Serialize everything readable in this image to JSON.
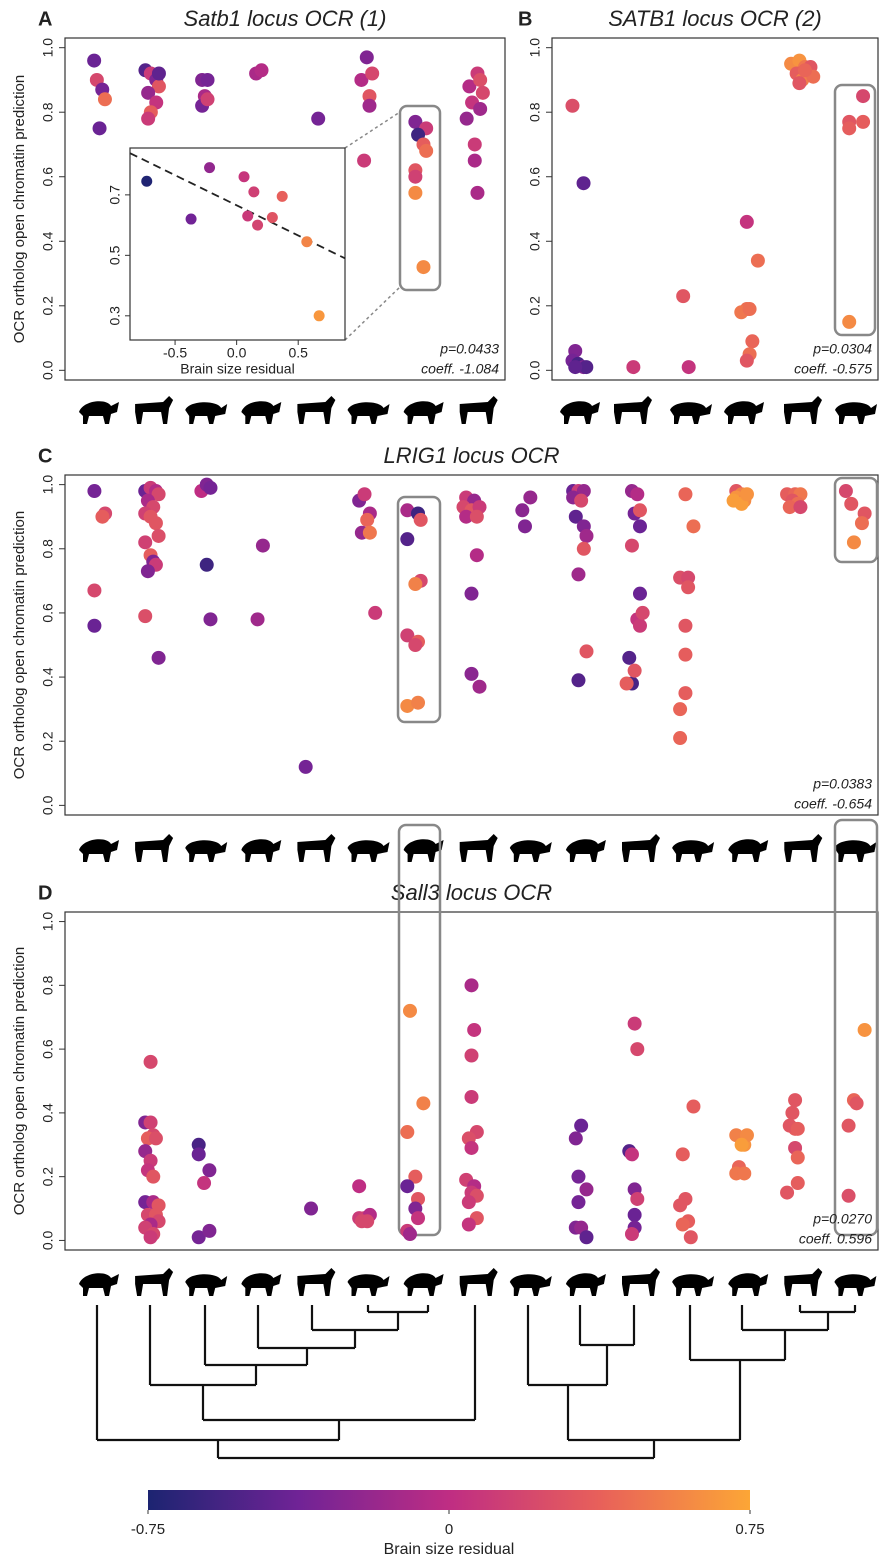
{
  "chart_data": [
    {
      "type": "scatter",
      "label": "A",
      "title": "Satb1 locus OCR (1)",
      "ylabel": "OCR ortholog open chromatin prediction",
      "xlim": [
        -0.59,
        7.56
      ],
      "ylim": [
        -0.03,
        1.03
      ],
      "yticks": [
        {
          "value": 0,
          "label": "0.0"
        },
        0.2,
        0.4,
        0.6,
        0.8,
        {
          "value": 1,
          "label": "1.0"
        }
      ],
      "x": [
        -0.05,
        0,
        0.1,
        0.15,
        0.05,
        0.9,
        1,
        1.1,
        1.15,
        0.95,
        1.1,
        1,
        0.95,
        1.15,
        1.95,
        2.05,
        2,
        1.95,
        2.05,
        2.95,
        3.05,
        4.1,
        4.9,
        5,
        5.1,
        5.05,
        5.05,
        4.95,
        5.9,
        6.1,
        5.95,
        6.05,
        6.1,
        5.9,
        5.9,
        5.9,
        6.05,
        6.9,
        7.05,
        7.1,
        7.15,
        6.95,
        7.1,
        6.85,
        7,
        7,
        7.05
      ],
      "values": [
        0.96,
        0.9,
        0.87,
        0.84,
        0.75,
        0.93,
        0.92,
        0.9,
        0.88,
        0.86,
        0.83,
        0.8,
        0.78,
        0.92,
        0.9,
        0.9,
        0.85,
        0.82,
        0.84,
        0.92,
        0.93,
        0.78,
        0.9,
        0.97,
        0.92,
        0.85,
        0.82,
        0.65,
        0.77,
        0.75,
        0.73,
        0.7,
        0.68,
        0.62,
        0.6,
        0.55,
        0.32,
        0.88,
        0.92,
        0.9,
        0.86,
        0.83,
        0.81,
        0.78,
        0.7,
        0.65,
        0.55
      ],
      "residuals": [
        -0.4,
        0.2,
        -0.35,
        0.45,
        -0.4,
        -0.5,
        0.1,
        -0.3,
        0.3,
        -0.2,
        0.05,
        0.35,
        0.1,
        -0.45,
        -0.3,
        -0.35,
        -0.1,
        -0.35,
        0.15,
        -0.1,
        -0.05,
        -0.35,
        -0.05,
        -0.3,
        0.2,
        0.3,
        -0.15,
        0.1,
        -0.3,
        0.1,
        -0.6,
        0.35,
        0.45,
        0.3,
        0.15,
        0.6,
        0.6,
        -0.05,
        0.1,
        0.25,
        0.2,
        0.05,
        -0.15,
        -0.2,
        0.1,
        -0.1,
        -0.1
      ],
      "annotations": [
        "p=0.0433",
        "coeff. -1.084"
      ],
      "inset": {
        "type": "scatter",
        "xlabel": "Brain size residual",
        "xlim": [
          -0.866,
          0.88
        ],
        "ylim": [
          0.22,
          0.855
        ],
        "xticks": [
          -0.5,
          {
            "value": 0,
            "label": "0.0"
          },
          0.5
        ],
        "yticks": [
          0.3,
          0.5,
          0.7
        ],
        "x": [
          -0.73,
          -0.22,
          -0.37,
          0.06,
          0.14,
          0.09,
          0.17,
          0.29,
          0.37,
          0.57,
          0.67
        ],
        "values": [
          0.745,
          0.79,
          0.62,
          0.76,
          0.71,
          0.63,
          0.6,
          0.625,
          0.695,
          0.545,
          0.3
        ],
        "regression": {
          "x": [
            -0.866,
            0.88
          ],
          "values": [
            0.838,
            0.49
          ]
        }
      }
    },
    {
      "type": "scatter",
      "label": "B",
      "title": "SATB1 locus OCR (2)",
      "xlim": [
        -0.47,
        5.42
      ],
      "ylim": [
        -0.03,
        1.03
      ],
      "yticks": [
        {
          "value": 0,
          "label": "0.0"
        },
        0.2,
        0.4,
        0.6,
        0.8,
        {
          "value": 1,
          "label": "1.0"
        }
      ],
      "x": [
        -0.1,
        0.1,
        -0.05,
        -0.1,
        0,
        0.1,
        0.15,
        -0.05,
        1,
        1.9,
        2,
        3.05,
        3.25,
        3.05,
        2.95,
        3.1,
        3.15,
        3.1,
        3.05,
        3.85,
        4,
        4.1,
        4.2,
        3.95,
        4.05,
        4.25,
        4,
        4.1,
        4.9,
        5.15,
        5.15,
        4.9,
        4.9
      ],
      "values": [
        0.82,
        0.58,
        0.06,
        0.03,
        0.02,
        0.01,
        0.01,
        0.01,
        0.01,
        0.23,
        0.01,
        0.46,
        0.34,
        0.19,
        0.18,
        0.19,
        0.09,
        0.05,
        0.03,
        0.95,
        0.96,
        0.94,
        0.94,
        0.92,
        0.9,
        0.91,
        0.89,
        0.93,
        0.77,
        0.85,
        0.77,
        0.75,
        0.15
      ],
      "residuals": [
        0.25,
        -0.45,
        -0.3,
        -0.35,
        -0.55,
        -0.3,
        -0.5,
        -0.45,
        0.1,
        0.3,
        0.05,
        0.05,
        0.45,
        0.45,
        0.5,
        0.45,
        0.4,
        0.45,
        0.3,
        0.6,
        0.65,
        0.5,
        0.3,
        0.35,
        0.55,
        0.45,
        0.3,
        0.4,
        0.3,
        0.2,
        0.35,
        0.35,
        0.6
      ],
      "annotations": [
        "p=0.0304",
        "coeff. -0.575"
      ]
    },
    {
      "type": "scatter",
      "label": "C",
      "title": "LRIG1 locus OCR",
      "ylabel": "OCR ortholog open chromatin prediction",
      "xlim": [
        -0.6,
        14.6
      ],
      "ylim": [
        -0.03,
        1.03
      ],
      "yticks": [
        {
          "value": 0,
          "label": "0.0"
        },
        0.2,
        0.4,
        0.6,
        0.8,
        {
          "value": 1,
          "label": "1.0"
        }
      ],
      "x": [
        -0.05,
        0.15,
        0.1,
        -0.05,
        -0.05,
        0.9,
        1,
        1.1,
        1.15,
        0.95,
        1.05,
        0.9,
        1,
        1.1,
        0.9,
        1,
        1.05,
        1.1,
        0.95,
        1.15,
        0.9,
        1.15,
        1.95,
        2.05,
        2.12,
        2.05,
        2.12,
        3.1,
        3,
        3.9,
        4.9,
        5,
        5.1,
        5.05,
        4.95,
        5.1,
        5.2,
        5.8,
        6,
        5.8,
        6.05,
        6.05,
        5.95,
        5.8,
        6,
        5.95,
        5.8,
        6,
        6.9,
        7.05,
        6.85,
        7,
        7.15,
        6.9,
        7.1,
        7.1,
        7,
        7,
        7.15,
        7.95,
        8.1,
        8,
        8.9,
        9,
        9.1,
        8.9,
        9.05,
        8.95,
        9.1,
        9.15,
        9.1,
        9,
        9.15,
        9,
        10,
        10.1,
        10.05,
        10.15,
        10.15,
        10,
        10.15,
        10.1,
        10.15,
        10.2,
        9.95,
        10,
        10.05,
        9.9,
        11,
        11.15,
        10.9,
        11.05,
        11.05,
        11,
        11,
        11,
        10.9,
        10.9,
        11.95,
        12.05,
        11.95,
        12.1,
        12.05,
        11.9,
        12.15,
        12.9,
        13.05,
        13.15,
        13,
        13.1,
        12.95,
        13.15,
        14,
        14.1,
        14.35,
        14.3,
        14.15
      ],
      "values": [
        0.98,
        0.91,
        0.9,
        0.67,
        0.56,
        0.98,
        0.99,
        0.98,
        0.97,
        0.95,
        0.93,
        0.91,
        0.9,
        0.88,
        0.82,
        0.78,
        0.76,
        0.75,
        0.73,
        0.84,
        0.59,
        0.46,
        0.98,
        1.0,
        0.99,
        0.75,
        0.58,
        0.81,
        0.58,
        0.12,
        0.95,
        0.97,
        0.91,
        0.89,
        0.85,
        0.85,
        0.6,
        0.92,
        0.91,
        0.83,
        0.89,
        0.7,
        0.69,
        0.53,
        0.51,
        0.5,
        0.31,
        0.32,
        0.96,
        0.95,
        0.93,
        0.92,
        0.93,
        0.9,
        0.9,
        0.78,
        0.66,
        0.41,
        0.37,
        0.92,
        0.96,
        0.87,
        0.98,
        0.98,
        0.98,
        0.96,
        0.95,
        0.9,
        0.87,
        0.84,
        0.8,
        0.72,
        0.48,
        0.39,
        0.98,
        0.97,
        0.91,
        0.92,
        0.87,
        0.81,
        0.66,
        0.58,
        0.56,
        0.6,
        0.46,
        0.38,
        0.42,
        0.38,
        0.97,
        0.87,
        0.71,
        0.71,
        0.68,
        0.56,
        0.47,
        0.35,
        0.3,
        0.21,
        0.98,
        0.97,
        0.96,
        0.95,
        0.94,
        0.95,
        0.97,
        0.97,
        0.97,
        0.97,
        0.95,
        0.94,
        0.93,
        0.93,
        0.98,
        0.94,
        0.91,
        0.88,
        0.82
      ],
      "residuals": [
        -0.35,
        0.2,
        0.35,
        0.2,
        -0.4,
        -0.4,
        0.1,
        -0.05,
        0.2,
        -0.1,
        0.2,
        0.15,
        0.3,
        0.3,
        0.15,
        0.35,
        -0.3,
        0.1,
        -0.3,
        0.25,
        0.25,
        -0.3,
        0,
        -0.3,
        -0.35,
        -0.6,
        -0.3,
        -0.2,
        -0.15,
        -0.35,
        -0.3,
        0.1,
        -0.1,
        0.4,
        -0.2,
        0.5,
        0.1,
        -0.1,
        -0.6,
        -0.5,
        0.3,
        0.2,
        0.55,
        0.15,
        0.35,
        0.2,
        0.6,
        0.55,
        0.1,
        -0.2,
        0.2,
        0.3,
        0.1,
        -0.05,
        0.25,
        -0.05,
        -0.3,
        -0.25,
        -0.15,
        -0.25,
        -0.2,
        -0.3,
        -0.4,
        0.1,
        -0.2,
        -0.25,
        0.2,
        -0.45,
        -0.3,
        -0.15,
        0.3,
        -0.15,
        0.3,
        -0.5,
        -0.2,
        -0.05,
        -0.35,
        0.3,
        -0.4,
        0.2,
        -0.4,
        0.05,
        0.1,
        0.2,
        -0.5,
        -0.55,
        0.3,
        0.35,
        0.4,
        0.45,
        0.25,
        0.2,
        0.3,
        0.3,
        0.35,
        0.35,
        0.4,
        0.4,
        0.3,
        0.55,
        0.65,
        0.6,
        0.7,
        0.7,
        0.65,
        0.35,
        0.4,
        0.5,
        0.3,
        0.45,
        0.4,
        0.2,
        0.2,
        0.3,
        0.3,
        0.45,
        0.6
      ],
      "annotations": [
        "p=0.0383",
        "coeff. -0.654"
      ]
    },
    {
      "type": "scatter",
      "label": "D",
      "title": "Sall3 locus OCR",
      "ylabel": "OCR ortholog open chromatin prediction",
      "xlim": [
        -0.6,
        14.6
      ],
      "ylim": [
        -0.03,
        1.03
      ],
      "yticks": [
        {
          "value": 0,
          "label": "0.0"
        },
        0.2,
        0.4,
        0.6,
        0.8,
        {
          "value": 1,
          "label": "1.0"
        }
      ],
      "x": [
        1,
        0.9,
        1,
        1.05,
        0.95,
        1.1,
        0.9,
        1,
        0.95,
        1.05,
        0.9,
        1.05,
        1.15,
        0.95,
        1.1,
        1.15,
        1,
        0.9,
        1.05,
        1,
        1.9,
        1.9,
        2.1,
        2,
        1.9,
        2.1,
        4,
        4.9,
        4.9,
        5,
        5.1,
        5.05,
        4.95,
        5.85,
        6.1,
        5.8,
        5.95,
        5.8,
        6,
        5.95,
        6,
        5.8,
        5.85,
        7,
        7.05,
        7,
        7,
        7.1,
        6.95,
        7,
        6.9,
        7.05,
        7,
        7.1,
        6.95,
        7.1,
        6.95,
        8.95,
        9.05,
        9.15,
        9,
        9,
        8.95,
        9.05,
        9.15,
        10.05,
        10.1,
        9.95,
        10,
        10.05,
        10.1,
        10.05,
        10.05,
        10,
        11.15,
        10.95,
        11,
        10.9,
        11.05,
        10.95,
        11.1,
        11.95,
        12.1,
        12.15,
        12.05,
        12,
        11.95,
        12.1,
        13,
        13.05,
        13.05,
        12.95,
        13.1,
        13.05,
        13.1,
        13.1,
        12.9,
        14.35,
        14.15,
        14.2,
        14.05,
        14.05
      ],
      "values": [
        0.56,
        0.37,
        0.37,
        0.33,
        0.32,
        0.32,
        0.28,
        0.25,
        0.22,
        0.2,
        0.12,
        0.12,
        0.11,
        0.08,
        0.08,
        0.06,
        0.05,
        0.04,
        0.02,
        0.01,
        0.3,
        0.27,
        0.22,
        0.18,
        0.01,
        0.03,
        0.1,
        0.17,
        0.07,
        0.07,
        0.08,
        0.06,
        0.06,
        0.72,
        0.43,
        0.34,
        0.2,
        0.17,
        0.13,
        0.1,
        0.07,
        0.03,
        0.02,
        0.8,
        0.66,
        0.58,
        0.45,
        0.34,
        0.32,
        0.29,
        0.19,
        0.17,
        0.15,
        0.14,
        0.12,
        0.07,
        0.05,
        0.32,
        0.36,
        0.16,
        0.2,
        0.12,
        0.04,
        0.04,
        0.01,
        0.68,
        0.6,
        0.28,
        0.27,
        0.16,
        0.13,
        0.08,
        0.04,
        0.02,
        0.42,
        0.27,
        0.13,
        0.11,
        0.06,
        0.05,
        0.01,
        0.33,
        0.3,
        0.33,
        0.3,
        0.23,
        0.21,
        0.21,
        0.4,
        0.44,
        0.35,
        0.36,
        0.35,
        0.29,
        0.26,
        0.18,
        0.15,
        0.66,
        0.44,
        0.43,
        0.36,
        0.14
      ],
      "residuals": [
        0.2,
        -0.3,
        0.15,
        0.2,
        0.35,
        0.25,
        -0.2,
        0.1,
        0.05,
        0.3,
        -0.35,
        -0.1,
        0.3,
        0.2,
        0.3,
        0.2,
        -0.1,
        0.15,
        0.2,
        0.1,
        -0.55,
        -0.4,
        -0.3,
        0.05,
        -0.35,
        -0.3,
        -0.3,
        0,
        0.1,
        0.15,
        -0.05,
        0.2,
        0.2,
        0.6,
        0.55,
        0.45,
        0.35,
        -0.4,
        0.3,
        -0.3,
        0.05,
        0.1,
        -0.15,
        -0.1,
        0.05,
        0.15,
        0.1,
        0.2,
        0.25,
        0.05,
        0.15,
        -0.05,
        0.1,
        0.25,
        0.1,
        0.3,
        0.05,
        -0.3,
        -0.4,
        -0.2,
        -0.35,
        -0.35,
        -0.3,
        -0.2,
        -0.45,
        0.1,
        0.2,
        -0.5,
        0.05,
        -0.3,
        0.15,
        -0.4,
        -0.35,
        0.1,
        0.35,
        0.35,
        0.3,
        0.3,
        0.35,
        0.4,
        0.3,
        0.55,
        0.65,
        0.6,
        0.7,
        0.4,
        0.5,
        0.5,
        0.3,
        0.3,
        0.35,
        0.3,
        0.35,
        0.2,
        0.4,
        0.35,
        0.3,
        0.65,
        0.4,
        0.3,
        0.3,
        0.25
      ],
      "annotations": [
        "p=0.0270",
        "coeff. 0.596"
      ]
    }
  ],
  "colorbar": {
    "title": "Brain size residual",
    "lim": [
      -0.75,
      0.75
    ],
    "ticks": [
      -0.75,
      0,
      0.75
    ],
    "colors": [
      "#1c2471",
      "#702396",
      "#bf2d83",
      "#e8605a",
      "#fca636"
    ]
  }
}
